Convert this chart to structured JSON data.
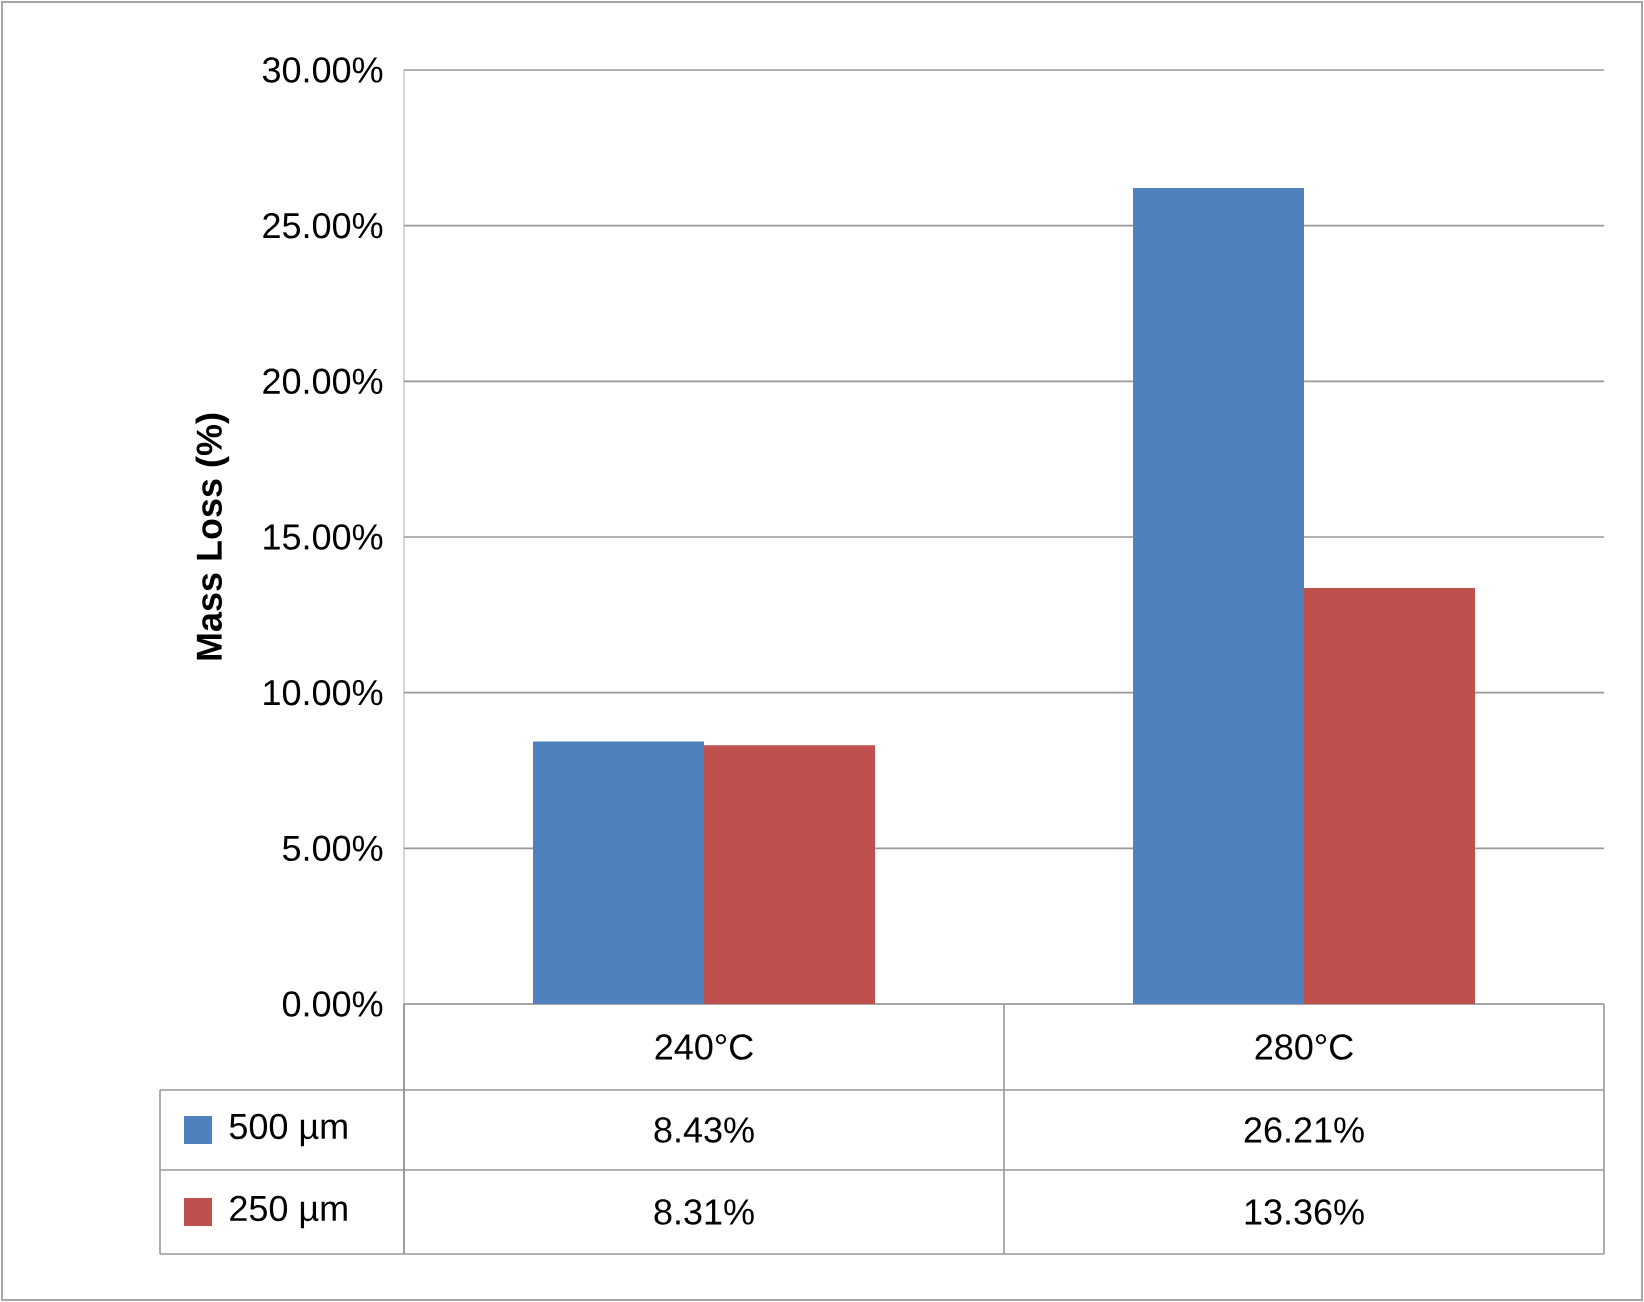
{
  "chart_data": {
    "type": "bar",
    "ylabel": "**Mass Loss (%)**",
    "categories": [
      "240°C",
      "280°C"
    ],
    "series": [
      {
        "name": "500 µm",
        "color": "#4f81bd",
        "values": [
          8.43,
          26.21
        ],
        "value_labels": [
          "8.43%",
          "26.21%"
        ]
      },
      {
        "name": "250 µm",
        "color": "#c0504d",
        "values": [
          8.31,
          13.36
        ],
        "value_labels": [
          "8.31%",
          "13.36%"
        ]
      }
    ],
    "ylim": [
      0,
      30
    ],
    "yticks": [
      {
        "value": 0,
        "label": "0.00%"
      },
      {
        "value": 5,
        "label": "5.00%"
      },
      {
        "value": 10,
        "label": "10.00%"
      },
      {
        "value": 15,
        "label": "15.00%"
      },
      {
        "value": 20,
        "label": "20.00%"
      },
      {
        "value": 25,
        "label": "25.00%"
      },
      {
        "value": 30,
        "label": "30.00%"
      }
    ],
    "grid": "y",
    "legend": "bottom"
  }
}
